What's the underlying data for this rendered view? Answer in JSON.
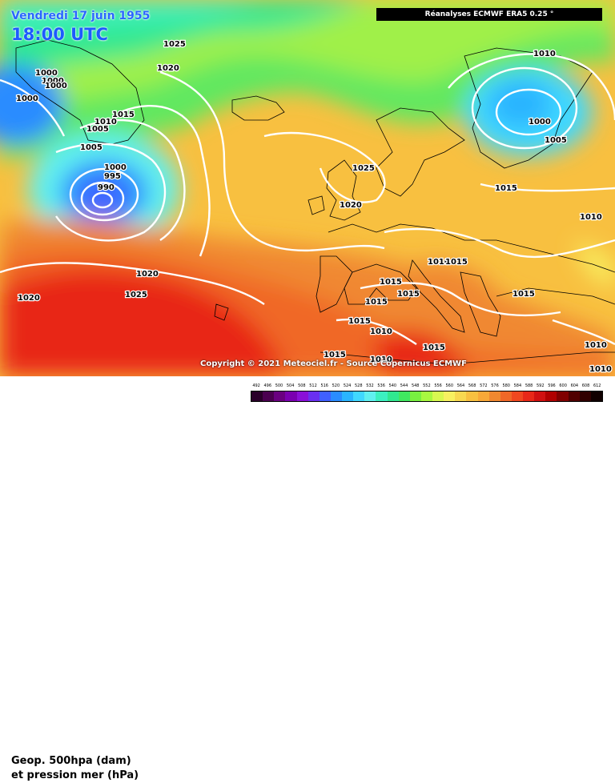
{
  "header": {
    "date": "Vendredi 17 juin 1955",
    "time": "18:00 UTC",
    "source": "Réanalyses ECMWF ERA5 0.25 °"
  },
  "copyright": "Copyright © 2021 Meteociel.fr - Source Copernicus ECMWF",
  "legend": {
    "line1": "Geop. 500hpa (dam)",
    "line2": "et pression mer (hPa)",
    "scale_labels": [
      "492",
      "496",
      "500",
      "504",
      "508",
      "512",
      "516",
      "520",
      "524",
      "528",
      "532",
      "536",
      "540",
      "544",
      "548",
      "552",
      "556",
      "560",
      "564",
      "568",
      "572",
      "576",
      "580",
      "584",
      "588",
      "592",
      "596",
      "600",
      "604",
      "608",
      "612"
    ],
    "scale_colors": [
      "#2a002a",
      "#4b0050",
      "#6a0080",
      "#7a00b0",
      "#8a10d8",
      "#6a30f0",
      "#4060ff",
      "#2a8cff",
      "#2ab4ff",
      "#40d8ff",
      "#60f0f0",
      "#3cf0c0",
      "#30e890",
      "#40e860",
      "#78f040",
      "#a8f840",
      "#d8f850",
      "#f8f060",
      "#f8d850",
      "#f8c040",
      "#f8a838",
      "#f08830",
      "#f06828",
      "#f04820",
      "#e82818",
      "#d01010",
      "#b00000",
      "#800000",
      "#500000",
      "#300000",
      "#100000"
    ]
  },
  "isobar_labels": [
    {
      "text": "1025"
    },
    {
      "text": "1020"
    },
    {
      "text": "1000"
    },
    {
      "text": "1000"
    },
    {
      "text": "1000"
    },
    {
      "text": "1000"
    },
    {
      "text": "1015"
    },
    {
      "text": "1010"
    },
    {
      "text": "1005"
    },
    {
      "text": "1005"
    },
    {
      "text": "1000"
    },
    {
      "text": "995"
    },
    {
      "text": "990"
    },
    {
      "text": "1010"
    },
    {
      "text": "1000"
    },
    {
      "text": "1005"
    },
    {
      "text": "1015"
    },
    {
      "text": "1025"
    },
    {
      "text": "1020"
    },
    {
      "text": "1010"
    },
    {
      "text": "1010"
    },
    {
      "text": "1015"
    },
    {
      "text": "1015"
    },
    {
      "text": "1015"
    },
    {
      "text": "1015"
    },
    {
      "text": "1015"
    },
    {
      "text": "1020"
    },
    {
      "text": "1025"
    },
    {
      "text": "1020"
    },
    {
      "text": "1015"
    },
    {
      "text": "1010"
    },
    {
      "text": "1015"
    },
    {
      "text": "1015"
    },
    {
      "text": "1010"
    },
    {
      "text": "1010"
    },
    {
      "text": "1010"
    }
  ]
}
